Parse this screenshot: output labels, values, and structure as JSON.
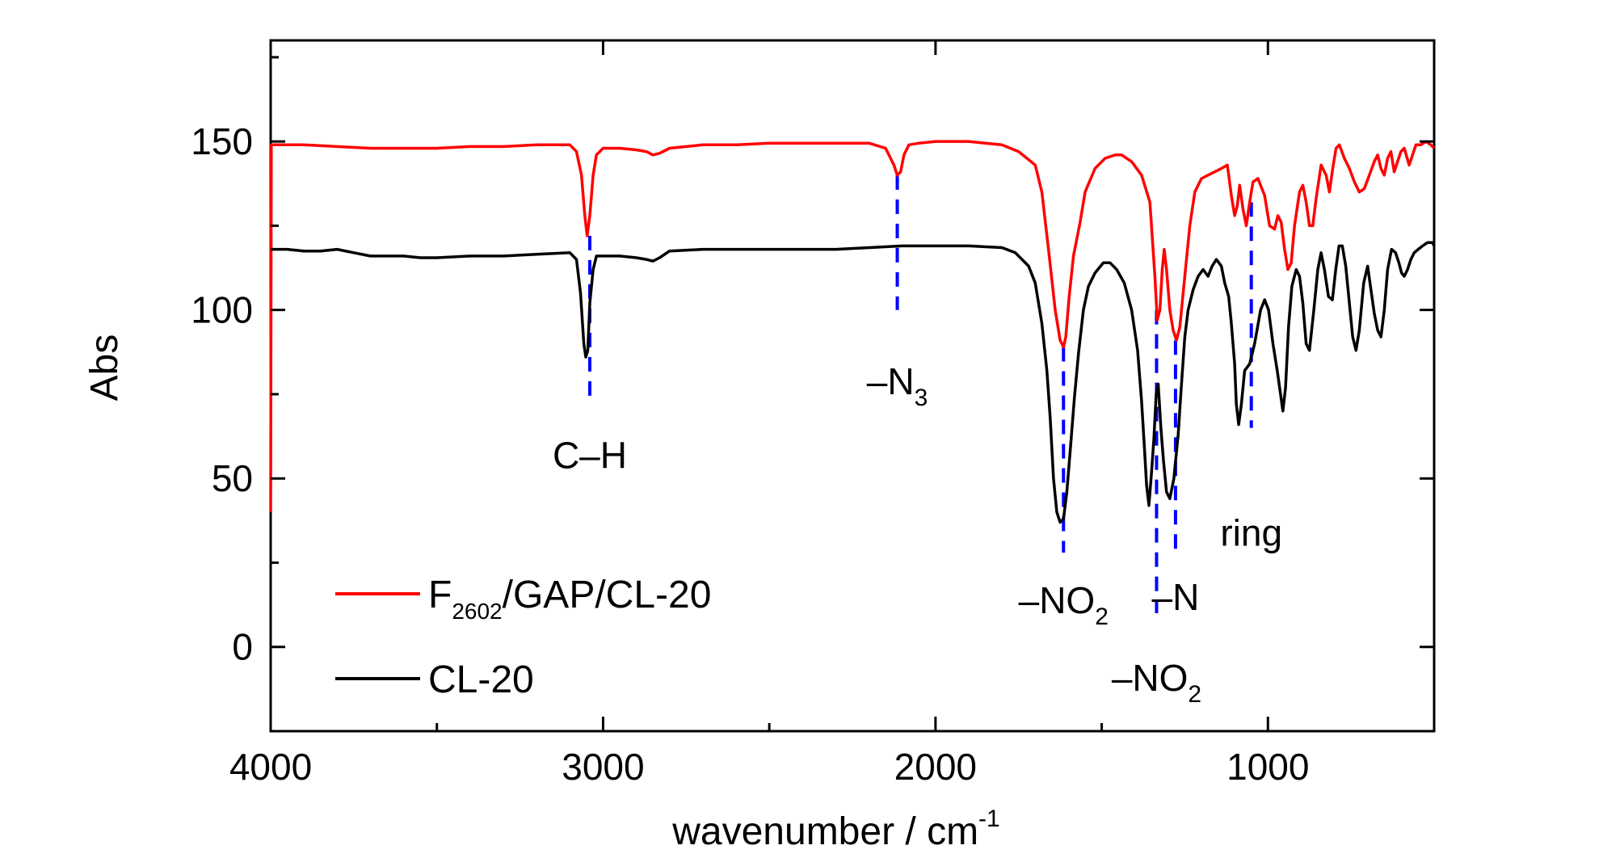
{
  "chart_data": {
    "type": "line",
    "xlabel": "wavenumber / cm",
    "xlabel_sup": "-1",
    "ylabel": "Abs",
    "xlim": [
      4000,
      500
    ],
    "ylim": [
      -25,
      180
    ],
    "x_reversed": true,
    "xticks": [
      {
        "value": 4000,
        "label": "4000"
      },
      {
        "value": 3000,
        "label": "3000"
      },
      {
        "value": 2000,
        "label": "2000"
      },
      {
        "value": 1000,
        "label": "1000"
      }
    ],
    "yticks": [
      {
        "value": 0,
        "label": "0"
      },
      {
        "value": 50,
        "label": "50"
      },
      {
        "value": 100,
        "label": "100"
      },
      {
        "value": 150,
        "label": "150"
      }
    ],
    "grid": false,
    "legend_position": "bottom-left",
    "series": [
      {
        "name": "F/GAP/CL-20",
        "name_parts": {
          "base": "F",
          "sub": "2602",
          "rest": "/GAP/CL-20"
        },
        "color": "#ff0000",
        "points": [
          [
            4000,
            40
          ],
          [
            3998,
            149
          ],
          [
            3900,
            149
          ],
          [
            3800,
            148.5
          ],
          [
            3700,
            148
          ],
          [
            3600,
            148
          ],
          [
            3500,
            148
          ],
          [
            3400,
            148.5
          ],
          [
            3300,
            148.5
          ],
          [
            3200,
            149
          ],
          [
            3100,
            149
          ],
          [
            3080,
            147
          ],
          [
            3065,
            140
          ],
          [
            3055,
            128
          ],
          [
            3048,
            122
          ],
          [
            3040,
            128
          ],
          [
            3030,
            140
          ],
          [
            3020,
            146
          ],
          [
            3000,
            148
          ],
          [
            2950,
            148
          ],
          [
            2900,
            147.5
          ],
          [
            2870,
            147
          ],
          [
            2850,
            146
          ],
          [
            2830,
            146.5
          ],
          [
            2800,
            148
          ],
          [
            2700,
            149
          ],
          [
            2600,
            149
          ],
          [
            2500,
            149.5
          ],
          [
            2400,
            149.5
          ],
          [
            2300,
            149.5
          ],
          [
            2200,
            149.5
          ],
          [
            2150,
            148
          ],
          [
            2125,
            143
          ],
          [
            2115,
            140
          ],
          [
            2105,
            141
          ],
          [
            2095,
            146
          ],
          [
            2080,
            149
          ],
          [
            2050,
            149.5
          ],
          [
            2000,
            150
          ],
          [
            1900,
            150
          ],
          [
            1850,
            149.5
          ],
          [
            1800,
            149
          ],
          [
            1750,
            147
          ],
          [
            1700,
            143
          ],
          [
            1680,
            135
          ],
          [
            1660,
            118
          ],
          [
            1640,
            100
          ],
          [
            1625,
            91
          ],
          [
            1615,
            89
          ],
          [
            1608,
            92
          ],
          [
            1598,
            104
          ],
          [
            1585,
            116
          ],
          [
            1565,
            126
          ],
          [
            1550,
            135
          ],
          [
            1520,
            142
          ],
          [
            1490,
            145
          ],
          [
            1460,
            146
          ],
          [
            1440,
            146
          ],
          [
            1410,
            144
          ],
          [
            1380,
            140
          ],
          [
            1355,
            132
          ],
          [
            1340,
            110
          ],
          [
            1333,
            97
          ],
          [
            1325,
            100
          ],
          [
            1318,
            112
          ],
          [
            1312,
            118
          ],
          [
            1305,
            112
          ],
          [
            1295,
            100
          ],
          [
            1285,
            94
          ],
          [
            1275,
            91
          ],
          [
            1265,
            95
          ],
          [
            1250,
            110
          ],
          [
            1235,
            125
          ],
          [
            1220,
            135
          ],
          [
            1200,
            139
          ],
          [
            1180,
            140
          ],
          [
            1160,
            141
          ],
          [
            1140,
            142
          ],
          [
            1122,
            143
          ],
          [
            1110,
            134
          ],
          [
            1100,
            128
          ],
          [
            1092,
            131
          ],
          [
            1085,
            137
          ],
          [
            1075,
            130
          ],
          [
            1065,
            125
          ],
          [
            1055,
            132
          ],
          [
            1045,
            138
          ],
          [
            1030,
            139
          ],
          [
            1010,
            134
          ],
          [
            995,
            125
          ],
          [
            980,
            124
          ],
          [
            970,
            128
          ],
          [
            960,
            126
          ],
          [
            950,
            118
          ],
          [
            940,
            112
          ],
          [
            930,
            114
          ],
          [
            920,
            125
          ],
          [
            905,
            135
          ],
          [
            895,
            137
          ],
          [
            885,
            132
          ],
          [
            875,
            125
          ],
          [
            865,
            125
          ],
          [
            855,
            133
          ],
          [
            840,
            143
          ],
          [
            825,
            140
          ],
          [
            815,
            135
          ],
          [
            805,
            142
          ],
          [
            795,
            148
          ],
          [
            785,
            149
          ],
          [
            770,
            145
          ],
          [
            755,
            142
          ],
          [
            740,
            138
          ],
          [
            725,
            135
          ],
          [
            710,
            136
          ],
          [
            695,
            140
          ],
          [
            680,
            144
          ],
          [
            670,
            146
          ],
          [
            660,
            142
          ],
          [
            650,
            140
          ],
          [
            640,
            145
          ],
          [
            630,
            147
          ],
          [
            620,
            141
          ],
          [
            610,
            144
          ],
          [
            600,
            147
          ],
          [
            590,
            148
          ],
          [
            575,
            143
          ],
          [
            565,
            146
          ],
          [
            555,
            149
          ],
          [
            540,
            149
          ],
          [
            525,
            150
          ],
          [
            510,
            149
          ],
          [
            500,
            148
          ]
        ]
      },
      {
        "name": "CL-20",
        "color": "#000000",
        "points": [
          [
            4000,
            118
          ],
          [
            3950,
            118
          ],
          [
            3900,
            117.5
          ],
          [
            3850,
            117.5
          ],
          [
            3800,
            118
          ],
          [
            3750,
            117
          ],
          [
            3700,
            116
          ],
          [
            3650,
            116
          ],
          [
            3600,
            116
          ],
          [
            3550,
            115.5
          ],
          [
            3500,
            115.5
          ],
          [
            3400,
            116
          ],
          [
            3300,
            116
          ],
          [
            3200,
            116.5
          ],
          [
            3100,
            117
          ],
          [
            3080,
            115
          ],
          [
            3068,
            105
          ],
          [
            3058,
            90
          ],
          [
            3052,
            86
          ],
          [
            3046,
            88
          ],
          [
            3040,
            102
          ],
          [
            3030,
            112
          ],
          [
            3020,
            116
          ],
          [
            3000,
            116
          ],
          [
            2950,
            116
          ],
          [
            2900,
            115.5
          ],
          [
            2870,
            115
          ],
          [
            2850,
            114.5
          ],
          [
            2830,
            115.5
          ],
          [
            2800,
            117.5
          ],
          [
            2700,
            118
          ],
          [
            2600,
            118
          ],
          [
            2500,
            118
          ],
          [
            2400,
            118
          ],
          [
            2300,
            118
          ],
          [
            2200,
            118.5
          ],
          [
            2100,
            119
          ],
          [
            2000,
            119
          ],
          [
            1900,
            119
          ],
          [
            1800,
            118.5
          ],
          [
            1760,
            117
          ],
          [
            1720,
            113
          ],
          [
            1700,
            108
          ],
          [
            1680,
            96
          ],
          [
            1665,
            82
          ],
          [
            1655,
            68
          ],
          [
            1645,
            50
          ],
          [
            1635,
            40
          ],
          [
            1625,
            37
          ],
          [
            1615,
            38
          ],
          [
            1605,
            46
          ],
          [
            1595,
            58
          ],
          [
            1582,
            74
          ],
          [
            1570,
            87
          ],
          [
            1555,
            100
          ],
          [
            1540,
            107
          ],
          [
            1520,
            111
          ],
          [
            1495,
            114
          ],
          [
            1475,
            114
          ],
          [
            1455,
            112
          ],
          [
            1432,
            108
          ],
          [
            1410,
            100
          ],
          [
            1392,
            88
          ],
          [
            1380,
            73
          ],
          [
            1372,
            60
          ],
          [
            1365,
            48
          ],
          [
            1358,
            42
          ],
          [
            1350,
            52
          ],
          [
            1343,
            62
          ],
          [
            1336,
            75
          ],
          [
            1330,
            78
          ],
          [
            1322,
            65
          ],
          [
            1314,
            55
          ],
          [
            1305,
            46
          ],
          [
            1295,
            44
          ],
          [
            1283,
            50
          ],
          [
            1270,
            63
          ],
          [
            1260,
            78
          ],
          [
            1250,
            92
          ],
          [
            1240,
            100
          ],
          [
            1225,
            106
          ],
          [
            1210,
            110
          ],
          [
            1195,
            112
          ],
          [
            1180,
            110
          ],
          [
            1168,
            113
          ],
          [
            1155,
            115
          ],
          [
            1140,
            113
          ],
          [
            1130,
            108
          ],
          [
            1118,
            104
          ],
          [
            1110,
            96
          ],
          [
            1100,
            84
          ],
          [
            1095,
            72
          ],
          [
            1088,
            66
          ],
          [
            1080,
            72
          ],
          [
            1070,
            82
          ],
          [
            1055,
            84
          ],
          [
            1040,
            90
          ],
          [
            1022,
            100
          ],
          [
            1010,
            103
          ],
          [
            998,
            100
          ],
          [
            985,
            90
          ],
          [
            972,
            82
          ],
          [
            962,
            75
          ],
          [
            955,
            70
          ],
          [
            947,
            77
          ],
          [
            938,
            95
          ],
          [
            928,
            107
          ],
          [
            915,
            112
          ],
          [
            905,
            110
          ],
          [
            895,
            102
          ],
          [
            885,
            90
          ],
          [
            875,
            88
          ],
          [
            862,
            100
          ],
          [
            850,
            112
          ],
          [
            840,
            117
          ],
          [
            830,
            112
          ],
          [
            818,
            104
          ],
          [
            806,
            103
          ],
          [
            796,
            112
          ],
          [
            786,
            119
          ],
          [
            776,
            119
          ],
          [
            766,
            113
          ],
          [
            755,
            102
          ],
          [
            745,
            92
          ],
          [
            735,
            88
          ],
          [
            725,
            94
          ],
          [
            712,
            108
          ],
          [
            700,
            113
          ],
          [
            690,
            106
          ],
          [
            680,
            99
          ],
          [
            670,
            94
          ],
          [
            660,
            92
          ],
          [
            650,
            100
          ],
          [
            640,
            112
          ],
          [
            628,
            118
          ],
          [
            616,
            117
          ],
          [
            606,
            114
          ],
          [
            598,
            111
          ],
          [
            590,
            110
          ],
          [
            580,
            112
          ],
          [
            570,
            115
          ],
          [
            560,
            117
          ],
          [
            548,
            118
          ],
          [
            535,
            119
          ],
          [
            520,
            120
          ],
          [
            505,
            120
          ],
          [
            500,
            119
          ]
        ]
      }
    ],
    "annotations": [
      {
        "text": "C–H",
        "sub": "",
        "x": 3040,
        "y_top": 122,
        "y_bottom": 72,
        "label_y": 53
      },
      {
        "text": "–N",
        "sub": "3",
        "x": 2115,
        "y_top": 140,
        "y_bottom": 100,
        "label_y": 75
      },
      {
        "text": "–NO",
        "sub": "2",
        "x": 1615,
        "y_top": 89,
        "y_bottom": 28,
        "label_y": 10
      },
      {
        "text": "–NO",
        "sub": "2",
        "x": 1335,
        "y_top": 100,
        "y_bottom": 10,
        "label_y": -13
      },
      {
        "text": "–N",
        "sub": "",
        "x": 1278,
        "y_top": 91,
        "y_bottom": 28,
        "label_y": 11
      },
      {
        "text": "ring",
        "sub": "",
        "x": 1050,
        "y_top": 132,
        "y_bottom": 65,
        "label_y": 30
      }
    ],
    "annotation_line_color": "#0000ff"
  }
}
